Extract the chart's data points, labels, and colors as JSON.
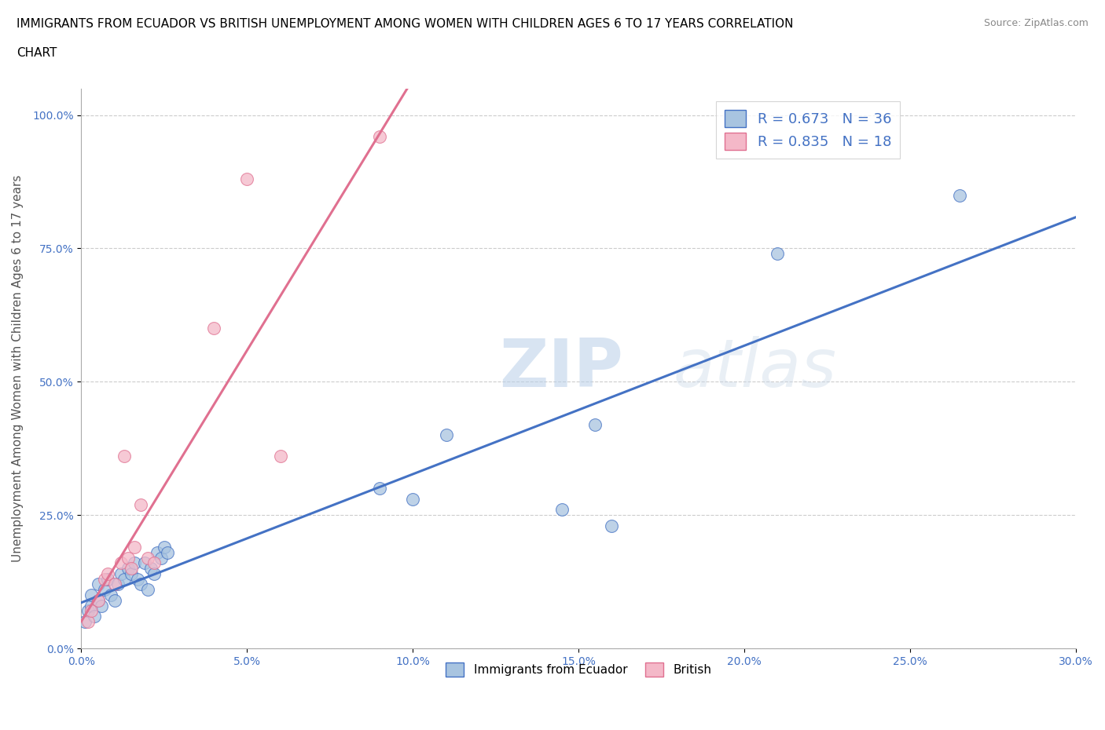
{
  "title_line1": "IMMIGRANTS FROM ECUADOR VS BRITISH UNEMPLOYMENT AMONG WOMEN WITH CHILDREN AGES 6 TO 17 YEARS CORRELATION",
  "title_line2": "CHART",
  "source": "Source: ZipAtlas.com",
  "ylabel": "Unemployment Among Women with Children Ages 6 to 17 years",
  "legend_labels": [
    "Immigrants from Ecuador",
    "British"
  ],
  "r_ecuador": 0.673,
  "n_ecuador": 36,
  "r_british": 0.835,
  "n_british": 18,
  "ecuador_color": "#a8c4e0",
  "british_color": "#f4b8c8",
  "ecuador_line_color": "#4472c4",
  "british_line_color": "#e07090",
  "watermark_zip": "ZIP",
  "watermark_atlas": "atlas",
  "xlim": [
    0,
    0.3
  ],
  "ylim": [
    0,
    1.05
  ],
  "xtick_labels": [
    "0.0%",
    "5.0%",
    "10.0%",
    "15.0%",
    "20.0%",
    "25.0%",
    "30.0%"
  ],
  "xtick_values": [
    0,
    0.05,
    0.1,
    0.15,
    0.2,
    0.25,
    0.3
  ],
  "ytick_labels": [
    "0.0%",
    "25.0%",
    "50.0%",
    "75.0%",
    "100.0%"
  ],
  "ytick_values": [
    0,
    0.25,
    0.5,
    0.75,
    1.0
  ],
  "ecuador_x": [
    0.001,
    0.002,
    0.003,
    0.003,
    0.004,
    0.005,
    0.005,
    0.006,
    0.007,
    0.008,
    0.009,
    0.01,
    0.011,
    0.012,
    0.013,
    0.014,
    0.015,
    0.016,
    0.017,
    0.018,
    0.019,
    0.02,
    0.021,
    0.022,
    0.023,
    0.024,
    0.025,
    0.026,
    0.09,
    0.1,
    0.11,
    0.145,
    0.155,
    0.16,
    0.21,
    0.265
  ],
  "ecuador_y": [
    0.05,
    0.07,
    0.08,
    0.1,
    0.06,
    0.09,
    0.12,
    0.08,
    0.11,
    0.13,
    0.1,
    0.09,
    0.12,
    0.14,
    0.13,
    0.15,
    0.14,
    0.16,
    0.13,
    0.12,
    0.16,
    0.11,
    0.15,
    0.14,
    0.18,
    0.17,
    0.19,
    0.18,
    0.3,
    0.28,
    0.4,
    0.26,
    0.42,
    0.23,
    0.74,
    0.85
  ],
  "british_x": [
    0.002,
    0.003,
    0.005,
    0.007,
    0.008,
    0.01,
    0.012,
    0.013,
    0.014,
    0.015,
    0.016,
    0.018,
    0.02,
    0.022,
    0.04,
    0.05,
    0.06,
    0.09
  ],
  "british_y": [
    0.05,
    0.07,
    0.09,
    0.13,
    0.14,
    0.12,
    0.16,
    0.36,
    0.17,
    0.15,
    0.19,
    0.27,
    0.17,
    0.16,
    0.6,
    0.88,
    0.36,
    0.96
  ]
}
